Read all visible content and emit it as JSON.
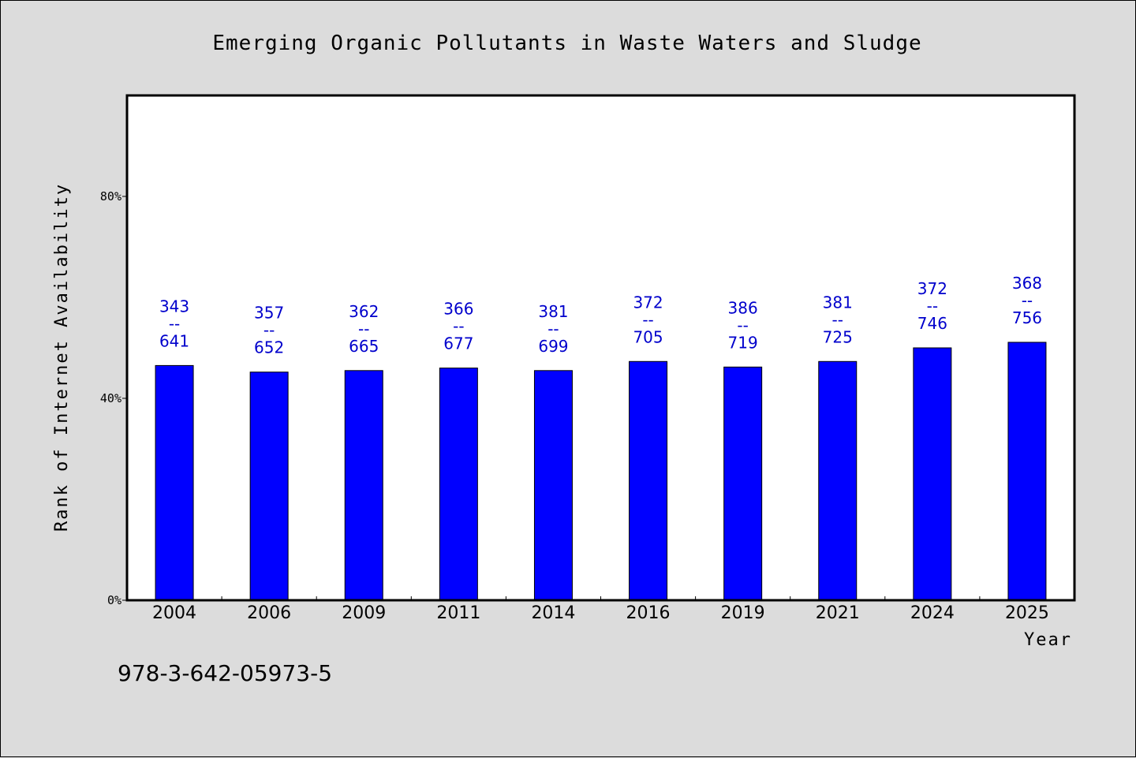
{
  "chart_data": {
    "type": "bar",
    "title": "Emerging Organic Pollutants in Waste Waters and Sludge",
    "xlabel": "Year",
    "ylabel": "Rank of Internet Availability",
    "categories": [
      "2004",
      "2006",
      "2009",
      "2011",
      "2014",
      "2016",
      "2019",
      "2021",
      "2024",
      "2025"
    ],
    "values": [
      46.5,
      45.2,
      45.5,
      46.0,
      45.5,
      47.3,
      46.2,
      47.3,
      50.0,
      51.1
    ],
    "value_unit": "%",
    "data_labels": [
      {
        "top": "343",
        "sep": "--",
        "bottom": "641"
      },
      {
        "top": "357",
        "sep": "--",
        "bottom": "652"
      },
      {
        "top": "362",
        "sep": "--",
        "bottom": "665"
      },
      {
        "top": "366",
        "sep": "--",
        "bottom": "677"
      },
      {
        "top": "381",
        "sep": "--",
        "bottom": "699"
      },
      {
        "top": "372",
        "sep": "--",
        "bottom": "705"
      },
      {
        "top": "386",
        "sep": "--",
        "bottom": "719"
      },
      {
        "top": "381",
        "sep": "--",
        "bottom": "725"
      },
      {
        "top": "372",
        "sep": "--",
        "bottom": "746"
      },
      {
        "top": "368",
        "sep": "--",
        "bottom": "756"
      }
    ],
    "ylim": [
      0,
      100
    ],
    "yticks": [
      0,
      40,
      80
    ],
    "ytick_labels": [
      "0%",
      "40%",
      "80%"
    ],
    "grid": false,
    "legend": "none",
    "colors": {
      "bar": "#0000ff",
      "bar_edge": "#000000",
      "label": "#0000cc",
      "plot_bg": "#ffffff",
      "page_bg": "#dcdcdc"
    }
  },
  "footer": {
    "text": "978-3-642-05973-5"
  }
}
